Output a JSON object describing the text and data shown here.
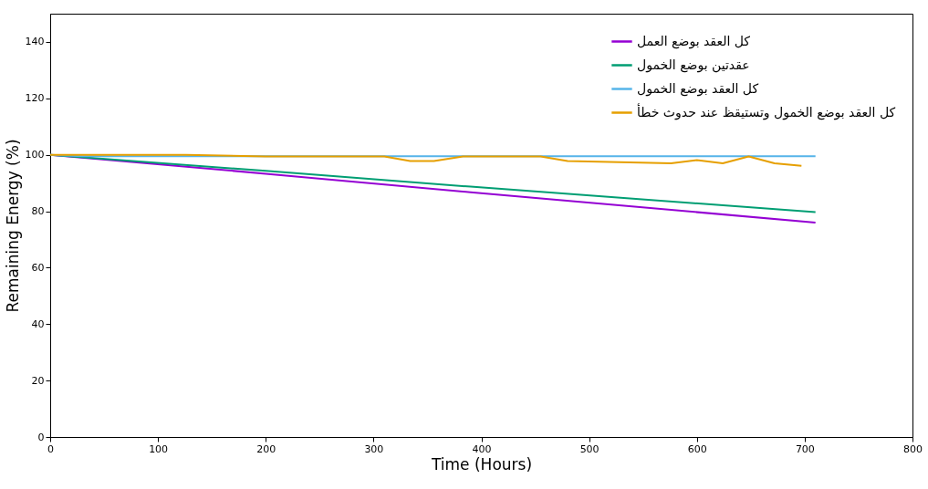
{
  "chart_data": {
    "type": "line",
    "xlabel": "Time (Hours)",
    "ylabel": "Remaining Energy (%)",
    "xlim": [
      0,
      800
    ],
    "ylim": [
      0,
      150
    ],
    "xticks": [
      0,
      100,
      200,
      300,
      400,
      500,
      600,
      700,
      800
    ],
    "yticks": [
      0,
      20,
      40,
      60,
      80,
      100,
      120,
      140
    ],
    "grid": false,
    "legend": "top right",
    "line_style": "solid",
    "marker": "none",
    "series": [
      {
        "name": "كل العقد بوضع العمل",
        "color": "#9400d3",
        "x": [
          0,
          200,
          390,
          710
        ],
        "values": [
          100,
          93.3,
          86.7,
          76
        ]
      },
      {
        "name": "عقدتين بوضع الخمول",
        "color": "#009e73",
        "x": [
          0,
          200,
          390,
          710
        ],
        "values": [
          100,
          94.3,
          88.7,
          79.7
        ]
      },
      {
        "name": "كل العقد بوضع الخمول",
        "color": "#56b4e9",
        "x": [
          0,
          30,
          710
        ],
        "values": [
          100,
          99.5,
          99.5
        ]
      },
      {
        "name": "كل العقد بوضع الخمول وتستيقظ عند حدوث خطأ",
        "color": "#e69f00",
        "x": [
          0,
          126,
          200,
          310,
          334,
          356,
          383,
          455,
          480,
          576,
          600,
          624,
          648,
          672,
          697
        ],
        "values": [
          100,
          100,
          99.4,
          99.4,
          97.8,
          97.8,
          99.4,
          99.4,
          97.8,
          97,
          98.1,
          97,
          99.4,
          97,
          96.1
        ]
      }
    ]
  }
}
